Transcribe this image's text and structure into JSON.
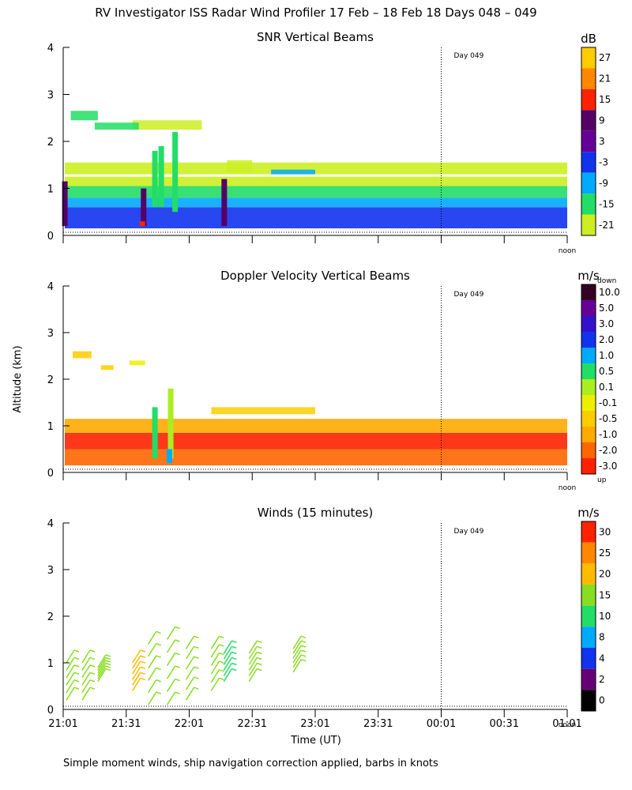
{
  "title": "RV Investigator ISS Radar Wind Profiler  17 Feb – 18 Feb 18 Days 048 – 049",
  "footnote": "Simple moment winds, ship navigation correction applied, barbs in knots",
  "y_axis_label": "Altitude (km)",
  "x_axis_label": "Time (UT)",
  "x_tick_labels": [
    "21:01",
    "21:31",
    "22:01",
    "22:31",
    "23:01",
    "23:31",
    "00:01",
    "00:31",
    "01:01"
  ],
  "day_marker": "Day 049",
  "noon_label": "noon",
  "chart_data": [
    {
      "type": "heatmap",
      "title": "SNR Vertical Beams",
      "ylabel": "Altitude (km)",
      "ylim": [
        0,
        4
      ],
      "y_ticks": [
        "0",
        "1",
        "2",
        "3",
        "4"
      ],
      "colorbar": {
        "unit": "dB",
        "labels": [
          "27",
          "21",
          "15",
          "9",
          "3",
          "-3",
          "-9",
          "-15",
          "-21"
        ],
        "colors": [
          "#ffcc00",
          "#ff8800",
          "#ff2200",
          "#550066",
          "#660099",
          "#1133ee",
          "#00aaff",
          "#22dd66",
          "#ccee22"
        ]
      },
      "bands": [
        {
          "alt": [
            0.15,
            0.6
          ],
          "color": "#1133ee"
        },
        {
          "alt": [
            0.6,
            0.8
          ],
          "color": "#00aaff"
        },
        {
          "alt": [
            0.8,
            1.05
          ],
          "color": "#22dd66"
        },
        {
          "alt": [
            1.05,
            1.25
          ],
          "color": "#ccee22"
        },
        {
          "alt": [
            1.3,
            1.55
          ],
          "color": "#ccee22"
        }
      ],
      "streaks": [
        {
          "t": 0.02,
          "alt": [
            0.2,
            1.15
          ],
          "color": "#550066"
        },
        {
          "t": 1.27,
          "alt": [
            0.2,
            1.0
          ],
          "color": "#550066"
        },
        {
          "t": 1.25,
          "alt": [
            0.2,
            0.3
          ],
          "color": "#ff2200"
        },
        {
          "t": 1.45,
          "alt": [
            0.6,
            1.8
          ],
          "color": "#22dd66"
        },
        {
          "t": 1.55,
          "alt": [
            0.6,
            1.9
          ],
          "color": "#22dd66"
        },
        {
          "t": 1.77,
          "alt": [
            0.5,
            2.2
          ],
          "color": "#22dd66"
        },
        {
          "t": 2.55,
          "alt": [
            0.2,
            1.2
          ],
          "color": "#550066"
        }
      ],
      "patches": [
        {
          "t": [
            0.12,
            0.55
          ],
          "alt": [
            2.45,
            2.65
          ],
          "color": "#22dd66"
        },
        {
          "t": [
            1.1,
            2.2
          ],
          "alt": [
            2.25,
            2.45
          ],
          "color": "#ccee22"
        },
        {
          "t": [
            2.6,
            3.0
          ],
          "alt": [
            1.35,
            1.6
          ],
          "color": "#ccee22"
        },
        {
          "t": [
            0.5,
            1.2
          ],
          "alt": [
            2.25,
            2.4
          ],
          "color": "#22dd66"
        },
        {
          "t": [
            3.3,
            4.0
          ],
          "alt": [
            1.3,
            1.4
          ],
          "color": "#00aaff"
        }
      ]
    },
    {
      "type": "heatmap",
      "title": "Doppler Velocity Vertical Beams",
      "ylabel": "Altitude (km)",
      "ylim": [
        0,
        4
      ],
      "y_ticks": [
        "0",
        "1",
        "2",
        "3",
        "4"
      ],
      "colorbar": {
        "unit": "m/s",
        "top_label": "down",
        "bottom_label": "up",
        "labels": [
          "10.0",
          "5.0",
          "3.0",
          "2.0",
          "1.0",
          "0.5",
          "0.1",
          "-0.1",
          "-0.5",
          "-1.0",
          "-2.0",
          "-3.0"
        ],
        "colors": [
          "#330022",
          "#660099",
          "#3311cc",
          "#1133ee",
          "#00aaff",
          "#22dd66",
          "#aaee22",
          "#eeee00",
          "#ffcc00",
          "#ffaa00",
          "#ff6600",
          "#ff2200"
        ]
      },
      "bands": [
        {
          "alt": [
            0.15,
            0.5
          ],
          "color": "#ff6600"
        },
        {
          "alt": [
            0.5,
            0.85
          ],
          "color": "#ff2200"
        },
        {
          "alt": [
            0.85,
            1.15
          ],
          "color": "#ffaa00"
        }
      ],
      "streaks": [
        {
          "t": 1.45,
          "alt": [
            0.3,
            1.4
          ],
          "color": "#22dd66"
        },
        {
          "t": 1.7,
          "alt": [
            0.3,
            1.8
          ],
          "color": "#aaee22"
        },
        {
          "t": 1.68,
          "alt": [
            0.2,
            0.5
          ],
          "color": "#00aaff"
        }
      ],
      "patches": [
        {
          "t": [
            0.15,
            0.45
          ],
          "alt": [
            2.45,
            2.6
          ],
          "color": "#ffcc00"
        },
        {
          "t": [
            0.6,
            0.8
          ],
          "alt": [
            2.2,
            2.3
          ],
          "color": "#ffcc00"
        },
        {
          "t": [
            1.05,
            1.3
          ],
          "alt": [
            2.3,
            2.4
          ],
          "color": "#eeee00"
        },
        {
          "t": [
            2.35,
            4.0
          ],
          "alt": [
            1.25,
            1.4
          ],
          "color": "#ffcc00"
        }
      ]
    },
    {
      "type": "scatter",
      "title": "Winds (15 minutes)",
      "ylabel": "Altitude (km)",
      "ylim": [
        0,
        4
      ],
      "y_ticks": [
        "0",
        "1",
        "2",
        "3",
        "4"
      ],
      "colorbar": {
        "unit": "m/s",
        "labels": [
          "30",
          "25",
          "20",
          "15",
          "10",
          "8",
          "4",
          "2",
          "0"
        ],
        "colors": [
          "#ff2200",
          "#ff8800",
          "#ffbb00",
          "#88dd22",
          "#22dd66",
          "#00aaff",
          "#1133ee",
          "#660077",
          "#000000"
        ]
      },
      "barb_groups": [
        {
          "t": 0.05,
          "alt": [
            0.2,
            1.0
          ],
          "color": "#88dd22"
        },
        {
          "t": 0.3,
          "alt": [
            0.2,
            1.0
          ],
          "color": "#88dd22"
        },
        {
          "t": 0.55,
          "alt": [
            0.6,
            0.9
          ],
          "color": "#88dd22"
        },
        {
          "t": 1.1,
          "alt": [
            0.4,
            1.0
          ],
          "color": "#ffbb00"
        },
        {
          "t": 1.35,
          "alt": [
            0.1,
            1.4
          ],
          "color": "#88dd22"
        },
        {
          "t": 1.65,
          "alt": [
            0.1,
            1.5
          ],
          "color": "#88dd22"
        },
        {
          "t": 1.95,
          "alt": [
            0.2,
            1.3
          ],
          "color": "#88dd22"
        },
        {
          "t": 2.35,
          "alt": [
            0.4,
            1.3
          ],
          "color": "#88dd22"
        },
        {
          "t": 2.55,
          "alt": [
            0.6,
            1.2
          ],
          "color": "#22dd66"
        },
        {
          "t": 2.95,
          "alt": [
            0.6,
            1.2
          ],
          "color": "#88dd22"
        },
        {
          "t": 3.65,
          "alt": [
            0.8,
            1.3
          ],
          "color": "#88dd22"
        }
      ]
    }
  ]
}
